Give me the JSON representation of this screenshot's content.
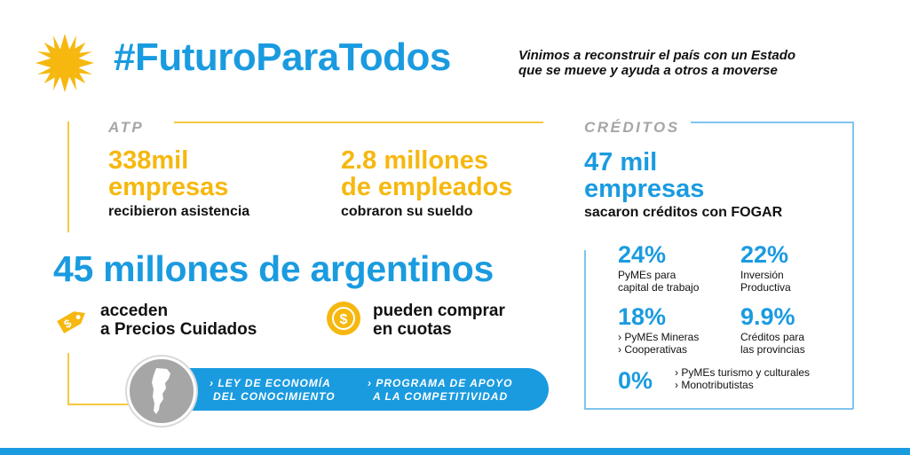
{
  "header": {
    "hashtag": "#FuturoParaTodos",
    "tagline_line1": "Vinimos a reconstruir el país con un Estado",
    "tagline_line2": "que se mueve y ayuda a otros a moverse"
  },
  "atp": {
    "label": "ATP",
    "stat1_line1": "338mil",
    "stat1_line2": "empresas",
    "stat1_desc": "recibieron asistencia",
    "stat2_line1": "2.8 millones",
    "stat2_line2": "de empleados",
    "stat2_desc": "cobraron su sueldo"
  },
  "argentinos": {
    "headline": "45 millones de argentinos",
    "feature1_line1": "acceden",
    "feature1_line2": "a Precios Cuidados",
    "feature2_line1": "pueden comprar",
    "feature2_line2": "en cuotas"
  },
  "banner": {
    "item1_line1": "› LEY DE ECONOMÍA",
    "item1_line2": "DEL CONOCIMIENTO",
    "item2_line1": "› PROGRAMA DE APOYO",
    "item2_line2": "A LA COMPETITIVIDAD"
  },
  "creditos": {
    "label": "CRÉDITOS",
    "stat_line1": "47 mil",
    "stat_line2": "empresas",
    "stat_desc": "sacaron créditos con FOGAR",
    "items": [
      {
        "pct": "24%",
        "desc1": "PyMEs para",
        "desc2": "capital de trabajo"
      },
      {
        "pct": "22%",
        "desc1": "Inversión",
        "desc2": "Productiva"
      },
      {
        "pct": "18%",
        "desc1": "› PyMEs Mineras",
        "desc2": "› Cooperativas"
      },
      {
        "pct": "9.9%",
        "desc1": "Créditos para",
        "desc2": "las provincias"
      },
      {
        "pct": "0%",
        "desc1": "› PyMEs turismo y culturales",
        "desc2": "› Monotributistas"
      }
    ]
  },
  "colors": {
    "blue": "#1a9be0",
    "yellow": "#f6b80f",
    "grey": "#a6a6a6"
  }
}
